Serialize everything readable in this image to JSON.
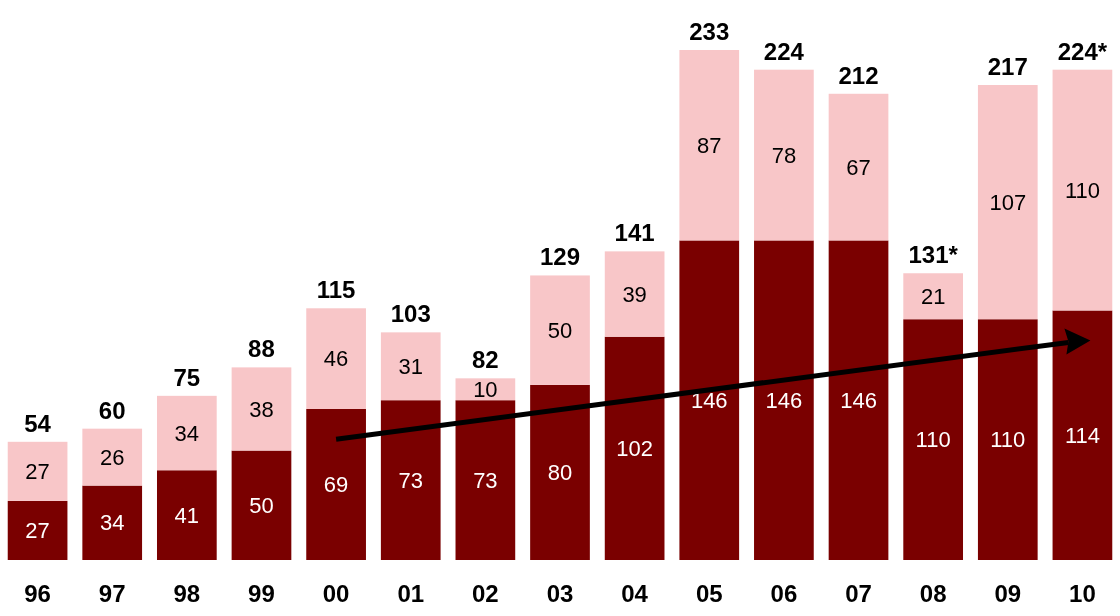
{
  "chart_data": {
    "type": "bar",
    "stacked": true,
    "categories": [
      "96",
      "97",
      "98",
      "99",
      "00",
      "01",
      "02",
      "03",
      "04",
      "05",
      "06",
      "07",
      "08",
      "09",
      "10"
    ],
    "series": [
      {
        "color": "#7a0000",
        "values": [
          27,
          34,
          41,
          50,
          69,
          73,
          73,
          80,
          102,
          146,
          146,
          146,
          110,
          110,
          114
        ]
      },
      {
        "color": "#f8c6c8",
        "values": [
          27,
          26,
          34,
          38,
          46,
          31,
          10,
          50,
          39,
          87,
          78,
          67,
          21,
          107,
          110
        ]
      }
    ],
    "data_labels": true,
    "totals": [
      "54",
      "60",
      "75",
      "88",
      "115",
      "103",
      "82",
      "129",
      "141",
      "233",
      "224",
      "212",
      "131*",
      "217",
      "224*"
    ]
  }
}
